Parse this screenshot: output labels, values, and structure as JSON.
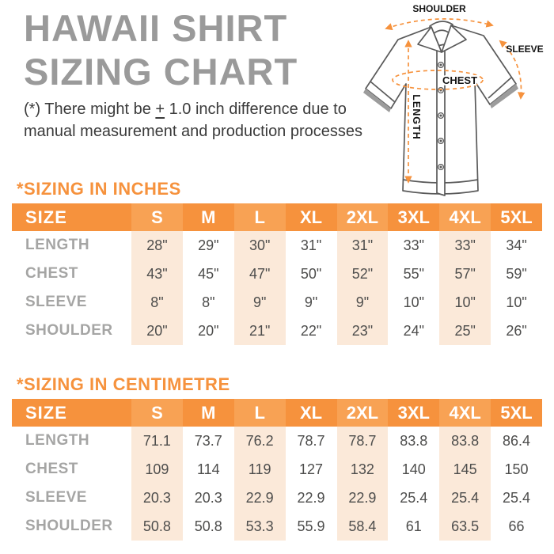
{
  "page": {
    "title_line1": "HAWAII SHIRT",
    "title_line2": "SIZING CHART",
    "note_prefix": "(*) There might be ",
    "note_plusminus": "+",
    "note_line1_rest": " 1.0 inch difference due to",
    "note_line2": "manual measurement and production processes"
  },
  "diagram": {
    "shoulder_label": "SHOULDER",
    "sleeve_label": "SLEEVE",
    "chest_label": "CHEST",
    "length_label": "LENGTH"
  },
  "colors": {
    "accent_orange": "#F6923D",
    "header_band_orange": "#F8A254",
    "column_band_peach": "#FBE9D9",
    "title_gray": "#9A9A9A",
    "row_label_gray": "#A5A5A4",
    "value_gray": "#4D4D4C"
  },
  "chart_data": [
    {
      "type": "table",
      "title": "*SIZING IN INCHES",
      "size_header": "SIZE",
      "columns": [
        "S",
        "M",
        "L",
        "XL",
        "2XL",
        "3XL",
        "4XL",
        "5XL"
      ],
      "highlighted_columns": [
        0,
        2,
        4,
        6
      ],
      "rows": [
        {
          "label": "LENGTH",
          "values": [
            "28\"",
            "29\"",
            "30\"",
            "31\"",
            "31\"",
            "33\"",
            "33\"",
            "34\""
          ]
        },
        {
          "label": "CHEST",
          "values": [
            "43\"",
            "45\"",
            "47\"",
            "50\"",
            "52\"",
            "55\"",
            "57\"",
            "59\""
          ]
        },
        {
          "label": "SLEEVE",
          "values": [
            "8\"",
            "8\"",
            "9\"",
            "9\"",
            "9\"",
            "10\"",
            "10\"",
            "10\""
          ]
        },
        {
          "label": "SHOULDER",
          "values": [
            "20\"",
            "20\"",
            "21\"",
            "22\"",
            "23\"",
            "24\"",
            "25\"",
            "26\""
          ]
        }
      ]
    },
    {
      "type": "table",
      "title": "*SIZING IN CENTIMETRE",
      "size_header": "SIZE",
      "columns": [
        "S",
        "M",
        "L",
        "XL",
        "2XL",
        "3XL",
        "4XL",
        "5XL"
      ],
      "highlighted_columns": [
        0,
        2,
        4,
        6
      ],
      "rows": [
        {
          "label": "LENGTH",
          "values": [
            "71.1",
            "73.7",
            "76.2",
            "78.7",
            "78.7",
            "83.8",
            "83.8",
            "86.4"
          ]
        },
        {
          "label": "CHEST",
          "values": [
            "109",
            "114",
            "119",
            "127",
            "132",
            "140",
            "145",
            "150"
          ]
        },
        {
          "label": "SLEEVE",
          "values": [
            "20.3",
            "20.3",
            "22.9",
            "22.9",
            "22.9",
            "25.4",
            "25.4",
            "25.4"
          ]
        },
        {
          "label": "SHOULDER",
          "values": [
            "50.8",
            "50.8",
            "53.3",
            "55.9",
            "58.4",
            "61",
            "63.5",
            "66"
          ]
        }
      ]
    }
  ]
}
